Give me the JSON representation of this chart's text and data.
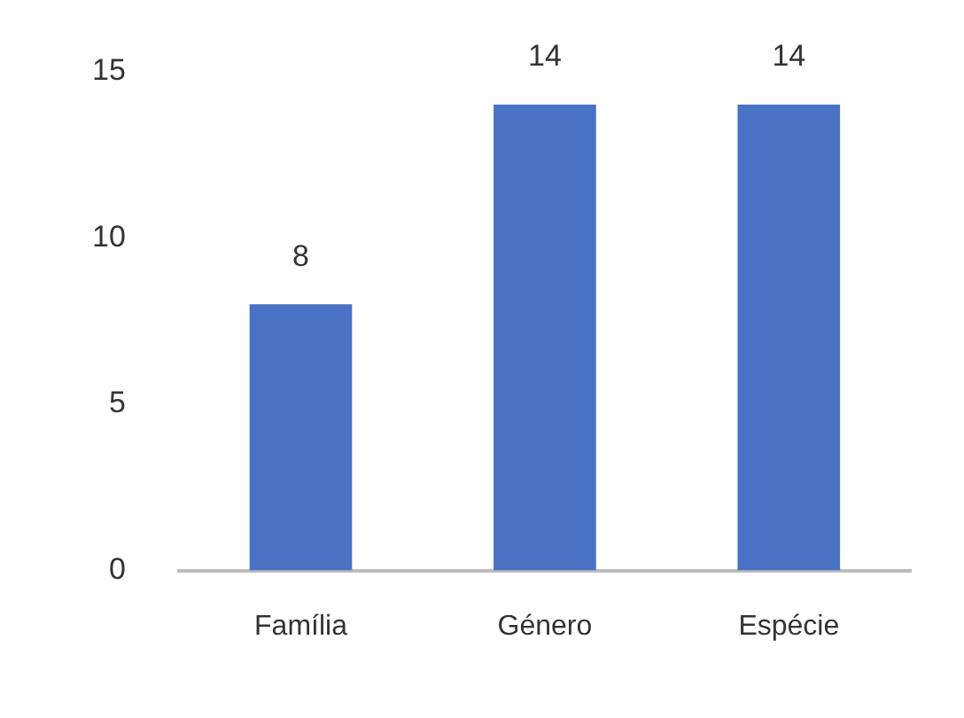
{
  "chart_data": {
    "type": "bar",
    "categories": [
      "Família",
      "Género",
      "Espécie"
    ],
    "values": [
      8,
      14,
      14
    ],
    "color": "#4a72c4",
    "ylim": [
      0,
      15
    ],
    "yticks": [
      0,
      5,
      10,
      15
    ],
    "grid": false,
    "legend": false,
    "data_labels": true
  }
}
